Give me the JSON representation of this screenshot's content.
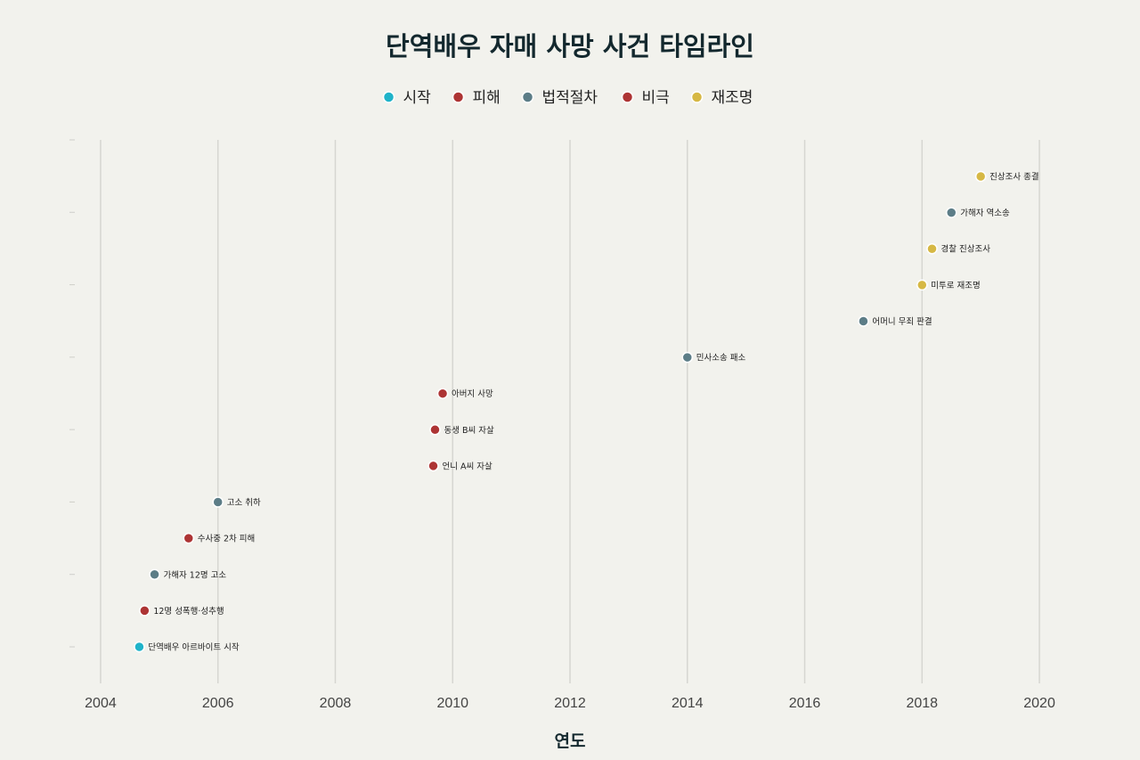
{
  "chart_data": {
    "type": "scatter",
    "title": "단역배우 자매 사망 사건 타임라인",
    "xlabel": "연도",
    "ylabel": "",
    "xlim": [
      2003.5,
      2020.5
    ],
    "xticks": [
      2004,
      2006,
      2008,
      2010,
      2012,
      2014,
      2016,
      2018,
      2020
    ],
    "legend_position": "top-center",
    "categories": [
      {
        "key": "start",
        "name": "시작",
        "color": "#1fb3c9"
      },
      {
        "key": "harm",
        "name": "피해",
        "color": "#ad3434"
      },
      {
        "key": "legal",
        "name": "법적절차",
        "color": "#5c7d87"
      },
      {
        "key": "tragedy",
        "name": "비극",
        "color": "#ad3434"
      },
      {
        "key": "reinvestigation",
        "name": "재조명",
        "color": "#d6b844"
      }
    ],
    "events": [
      {
        "x": 2004.66,
        "label": "단역배우 아르바이트 시작",
        "category": "start"
      },
      {
        "x": 2004.75,
        "label": "12명 성폭행·성추행",
        "category": "harm"
      },
      {
        "x": 2004.92,
        "label": "가해자 12명 고소",
        "category": "legal"
      },
      {
        "x": 2005.5,
        "label": "수사중 2차 피해",
        "category": "harm"
      },
      {
        "x": 2006.0,
        "label": "고소 취하",
        "category": "legal"
      },
      {
        "x": 2009.67,
        "label": "언니 A씨 자살",
        "category": "tragedy"
      },
      {
        "x": 2009.7,
        "label": "동생 B씨 자살",
        "category": "tragedy"
      },
      {
        "x": 2009.83,
        "label": "아버지 사망",
        "category": "tragedy"
      },
      {
        "x": 2014.0,
        "label": "민사소송 패소",
        "category": "legal"
      },
      {
        "x": 2017.0,
        "label": "어머니 무죄 판결",
        "category": "legal"
      },
      {
        "x": 2018.0,
        "label": "미투로 재조명",
        "category": "reinvestigation"
      },
      {
        "x": 2018.17,
        "label": "경찰 진상조사",
        "category": "reinvestigation"
      },
      {
        "x": 2018.5,
        "label": "가해자 역소송",
        "category": "legal"
      },
      {
        "x": 2019.0,
        "label": "진상조사 종결",
        "category": "reinvestigation"
      }
    ]
  }
}
